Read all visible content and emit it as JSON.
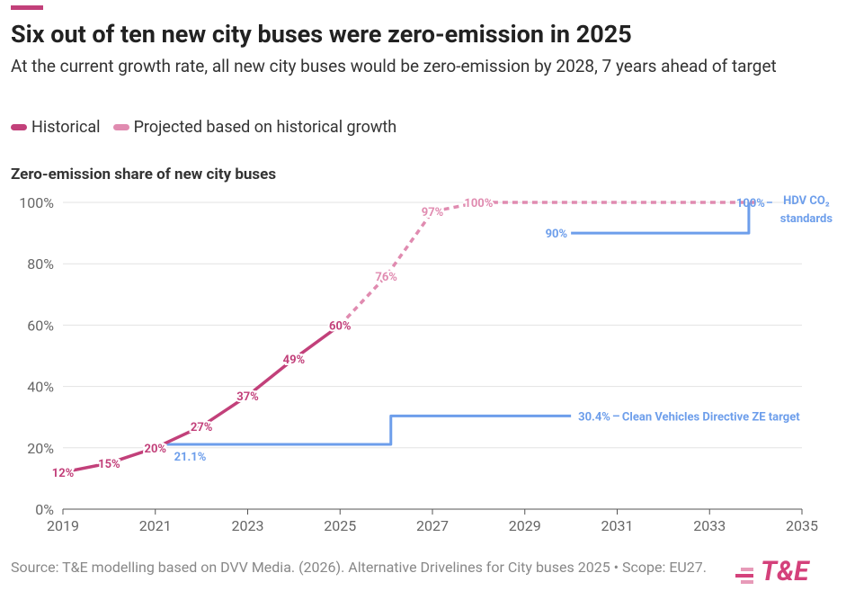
{
  "chart_data": {
    "type": "line",
    "title": "Six out of ten new city buses were zero-emission in 2025",
    "subtitle": "At the current growth rate, all new city buses would be zero-emission by 2028, 7 years ahead of target",
    "axis_title": "Zero-emission share of new city buses",
    "source": "Source: T&E modelling based on DVV Media. (2026). Alternative Drivelines for City buses 2025 • Scope: EU27.",
    "logo": "T&E",
    "xlim": [
      2019,
      2035
    ],
    "xticks": [
      2019,
      2021,
      2023,
      2025,
      2027,
      2029,
      2031,
      2033,
      2035
    ],
    "ylim": [
      0,
      100
    ],
    "yticks": [
      {
        "value": 0,
        "label": "0%"
      },
      {
        "value": 20,
        "label": "20%"
      },
      {
        "value": 40,
        "label": "40%"
      },
      {
        "value": 60,
        "label": "60%"
      },
      {
        "value": 80,
        "label": "80%"
      },
      {
        "value": 100,
        "label": "100%"
      }
    ],
    "grid": true,
    "series": [
      {
        "name": "Historical",
        "color": "#c2407a",
        "dashed": false,
        "x": [
          2019,
          2020,
          2021,
          2022,
          2023,
          2024,
          2025
        ],
        "values": [
          12,
          15,
          20,
          27,
          37,
          49,
          60
        ],
        "value_labels": [
          "12%",
          "15%",
          "20%",
          "27%",
          "37%",
          "49%",
          "60%"
        ]
      },
      {
        "name": "Projected based on historical growth",
        "color": "#e08bb0",
        "dashed": true,
        "x": [
          2025,
          2026,
          2027,
          2028,
          2029,
          2030,
          2031,
          2032,
          2033,
          2034
        ],
        "values": [
          60,
          76,
          97,
          100,
          100,
          100,
          100,
          100,
          100,
          100
        ],
        "value_labels": [
          null,
          "76%",
          "97%",
          "100%",
          null,
          null,
          null,
          null,
          null,
          null
        ]
      }
    ],
    "targets": [
      {
        "name": "Clean Vehicles Directive ZE target",
        "color": "#6d9eeb",
        "x": [
          2021.25,
          2026.1,
          2026.1,
          2030
        ],
        "values": [
          21.1,
          21.1,
          30.4,
          30.4
        ],
        "value_labels": [
          "21.1%",
          null,
          null,
          "30.4%"
        ]
      },
      {
        "name": "HDV CO₂ standards",
        "color": "#6d9eeb",
        "x": [
          2030,
          2033.85,
          2033.85
        ],
        "values": [
          90,
          90,
          100
        ],
        "value_labels": [
          "90%",
          null,
          "100%"
        ]
      }
    ]
  }
}
